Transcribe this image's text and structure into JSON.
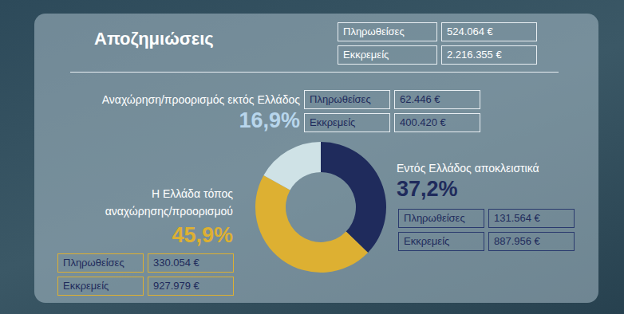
{
  "chart_data": {
    "type": "pie",
    "title": "Αποζημιώσεις",
    "summary": [
      {
        "label": "Πληρωθείσες",
        "value": "524.064 €"
      },
      {
        "label": "Εκκρεμείς",
        "value": "2.216.355 €"
      }
    ],
    "categories": [
      "Εντός Ελλάδος αποκλειστικά",
      "Η Ελλάδα τόπος αναχώρησης/προορισμού",
      "Αναχώρηση/προορισμός εκτός Ελλάδος"
    ],
    "values": [
      37.2,
      45.9,
      16.9
    ],
    "value_labels": [
      "37,2%",
      "45,9%",
      "16,9%"
    ],
    "colors": [
      "#1f2b5c",
      "#ddb032",
      "#cfe2e6"
    ],
    "data_labels": true,
    "details": [
      [
        {
          "label": "Πληρωθείσες",
          "value": "131.564 €"
        },
        {
          "label": "Εκκρεμείς",
          "value": "887.956 €"
        }
      ],
      [
        {
          "label": "Πληρωθείσες",
          "value": "330.054 €"
        },
        {
          "label": "Εκκρεμείς",
          "value": "927.979 €"
        }
      ],
      [
        {
          "label": "Πληρωθείσες",
          "value": "62.446 €"
        },
        {
          "label": "Εκκρεμείς",
          "value": "400.420 €"
        }
      ]
    ]
  }
}
